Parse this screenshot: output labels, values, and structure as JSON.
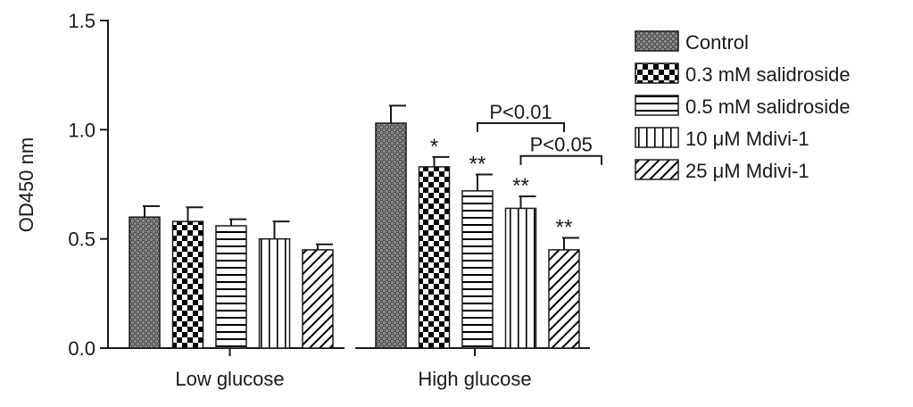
{
  "chart_data": {
    "type": "bar",
    "title": "",
    "xlabel": "",
    "ylabel": "OD450 nm",
    "ylim": [
      0,
      1.5
    ],
    "yticks": [
      "0.0",
      "0.5",
      "1.0",
      "1.5"
    ],
    "ytick_values": [
      0,
      0.5,
      1.0,
      1.5
    ],
    "grid": false,
    "legend_position": "right",
    "categories": [
      "Low glucose",
      "High glucose"
    ],
    "series": [
      {
        "name": "Control",
        "pattern": "crosshatch",
        "values": [
          0.6,
          1.03
        ],
        "errors": [
          0.05,
          0.08
        ],
        "marks": [
          "",
          ""
        ]
      },
      {
        "name": "0.3 mM salidroside",
        "pattern": "checker",
        "values": [
          0.58,
          0.83
        ],
        "errors": [
          0.065,
          0.045
        ],
        "marks": [
          "",
          "*"
        ]
      },
      {
        "name": "0.5 mM salidroside",
        "pattern": "horizontal",
        "values": [
          0.56,
          0.72
        ],
        "errors": [
          0.03,
          0.075
        ],
        "marks": [
          "",
          "**"
        ]
      },
      {
        "name": "10 μM Mdivi-1",
        "pattern": "vertical",
        "values": [
          0.5,
          0.64
        ],
        "errors": [
          0.08,
          0.055
        ],
        "marks": [
          "",
          "**"
        ]
      },
      {
        "name": "25 μM Mdivi-1",
        "pattern": "diagonal",
        "values": [
          0.45,
          0.45
        ],
        "errors": [
          0.025,
          0.055
        ],
        "marks": [
          "",
          "**"
        ]
      }
    ],
    "comparisons": [
      {
        "label": "P<0.01",
        "category": 1,
        "from_series": 2,
        "to_series": 4,
        "y": 1.03
      },
      {
        "label": "P<0.05",
        "category": 1,
        "from_series": 3,
        "to_series": 5,
        "y": 0.88
      }
    ]
  }
}
